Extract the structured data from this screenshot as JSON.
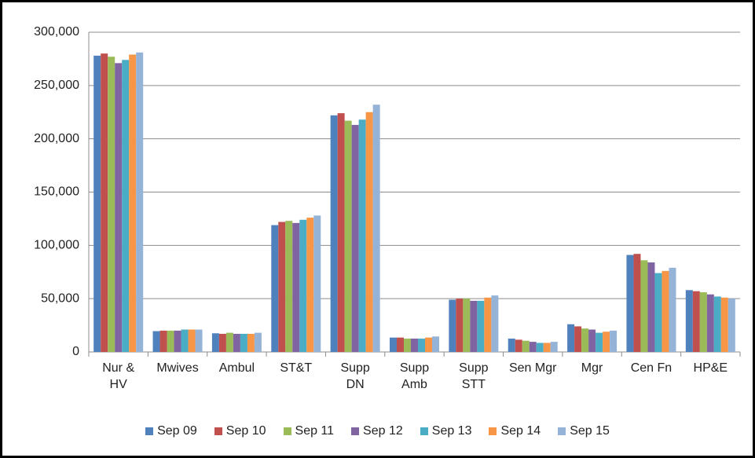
{
  "chart_data": {
    "type": "bar",
    "categories": [
      "Nur &\nHV",
      "Mwives",
      "Ambul",
      "ST&T",
      "Supp\nDN",
      "Supp\nAmb",
      "Supp\nSTT",
      "Sen Mgr",
      "Mgr",
      "Cen Fn",
      "HP&E"
    ],
    "series": [
      {
        "name": "Sep 09",
        "color": "#4f81bd",
        "values": [
          278000,
          19500,
          17500,
          119000,
          222000,
          13500,
          49000,
          12500,
          26000,
          91000,
          58000
        ]
      },
      {
        "name": "Sep 10",
        "color": "#c0504d",
        "values": [
          280000,
          20000,
          17000,
          122000,
          224000,
          13500,
          50000,
          11500,
          24000,
          92000,
          57000
        ]
      },
      {
        "name": "Sep 11",
        "color": "#9bbb59",
        "values": [
          277000,
          20000,
          18000,
          123000,
          217000,
          12500,
          50000,
          10500,
          22000,
          86000,
          56000
        ]
      },
      {
        "name": "Sep 12",
        "color": "#8064a2",
        "values": [
          271000,
          20000,
          17000,
          121000,
          213000,
          12500,
          48000,
          9500,
          21000,
          84000,
          54000
        ]
      },
      {
        "name": "Sep 13",
        "color": "#4bacc6",
        "values": [
          274000,
          21000,
          17000,
          124000,
          218000,
          12500,
          48000,
          8500,
          18000,
          74000,
          52000
        ]
      },
      {
        "name": "Sep 14",
        "color": "#f79646",
        "values": [
          279000,
          21000,
          17000,
          126000,
          225000,
          13500,
          51000,
          8500,
          19000,
          76000,
          51000
        ]
      },
      {
        "name": "Sep 15",
        "color": "#95b3d7",
        "values": [
          281000,
          21000,
          18000,
          128000,
          232000,
          14500,
          53000,
          9500,
          20000,
          79000,
          50000
        ]
      }
    ],
    "ylim": [
      0,
      300000
    ],
    "yticks": [
      0,
      {
        "value": 50000,
        "label": "50,000"
      },
      {
        "value": 100000,
        "label": "100,000"
      },
      {
        "value": 150000,
        "label": "150,000"
      },
      {
        "value": 200000,
        "label": "200,000"
      },
      {
        "value": 250000,
        "label": "250,000"
      },
      {
        "value": 300000,
        "label": "300,000"
      }
    ],
    "grid": true,
    "legend": "bottom"
  }
}
